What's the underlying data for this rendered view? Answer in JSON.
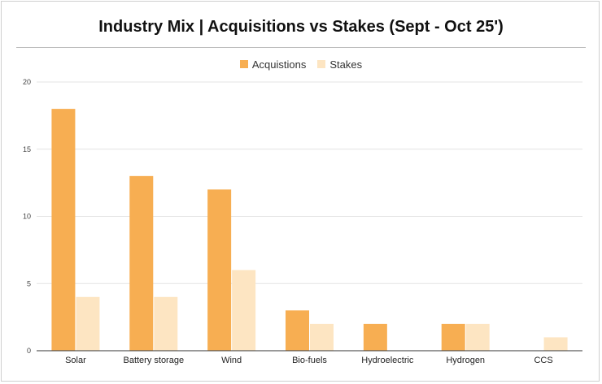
{
  "chart_data": {
    "type": "bar",
    "title": "Industry Mix | Acquisitions vs Stakes (Sept - Oct 25')",
    "categories": [
      "Solar",
      "Battery storage",
      "Wind",
      "Bio-fuels",
      "Hydroelectric",
      "Hydrogen",
      "CCS"
    ],
    "series": [
      {
        "name": "Acquistions",
        "values": [
          18,
          13,
          12,
          3,
          2,
          2,
          0
        ],
        "color": "#f7ae52"
      },
      {
        "name": "Stakes",
        "values": [
          4,
          4,
          6,
          2,
          0,
          2,
          1
        ],
        "color": "#fde5c2"
      }
    ],
    "xlabel": "",
    "ylabel": "",
    "ylim": [
      0,
      20
    ],
    "yticks": [
      "0",
      "5",
      "10",
      "15",
      "20"
    ],
    "grid": true,
    "legend_position": "top"
  }
}
